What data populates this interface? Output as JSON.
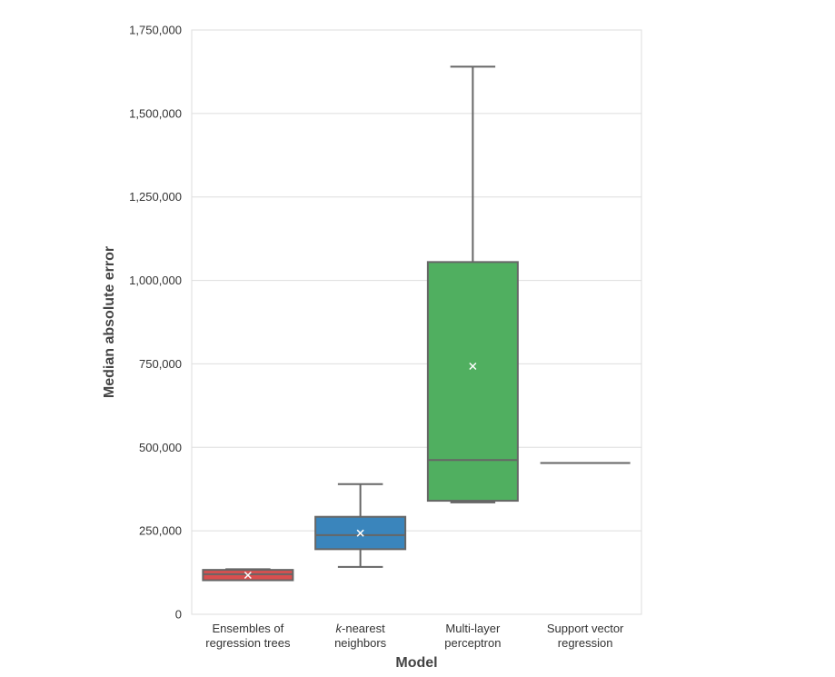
{
  "chart_data": {
    "type": "box",
    "xlabel": "Model",
    "ylabel": "Median absolute error",
    "ylim": [
      0,
      1750000
    ],
    "y_ticks": [
      0,
      250000,
      500000,
      750000,
      1000000,
      1250000,
      1500000,
      1750000
    ],
    "y_tick_labels": [
      "0",
      "250,000",
      "500,000",
      "750,000",
      "1,000,000",
      "1,250,000",
      "1,500,000",
      "1,750,000"
    ],
    "grid": true,
    "legend": "none",
    "categories": [
      {
        "lines": [
          "Ensembles of",
          "regression trees"
        ],
        "italic_prefix": ""
      },
      {
        "lines": [
          "k-nearest",
          "neighbors"
        ],
        "italic_prefix": "k"
      },
      {
        "lines": [
          "Multi-layer",
          "perceptron"
        ],
        "italic_prefix": ""
      },
      {
        "lines": [
          "Support vector",
          "regression"
        ],
        "italic_prefix": ""
      }
    ],
    "boxes": [
      {
        "whisker_low": 102000,
        "q1": 102000,
        "median": 120000,
        "q3": 133000,
        "whisker_high": 135000,
        "mean": 117000,
        "color": "#d94f4f"
      },
      {
        "whisker_low": 142000,
        "q1": 195000,
        "median": 237000,
        "q3": 292000,
        "whisker_high": 390000,
        "mean": 243000,
        "color": "#3a85bc"
      },
      {
        "whisker_low": 335000,
        "q1": 340000,
        "median": 462000,
        "q3": 1055000,
        "whisker_high": 1640000,
        "mean": 743000,
        "color": "#50af60"
      },
      {
        "whisker_low": 453000,
        "q1": 453000,
        "median": 453000,
        "q3": 453000,
        "whisker_high": 453000,
        "mean": null,
        "color": "#777777"
      }
    ],
    "line_color": "#666666",
    "mean_marker_color": "#ffffff"
  }
}
